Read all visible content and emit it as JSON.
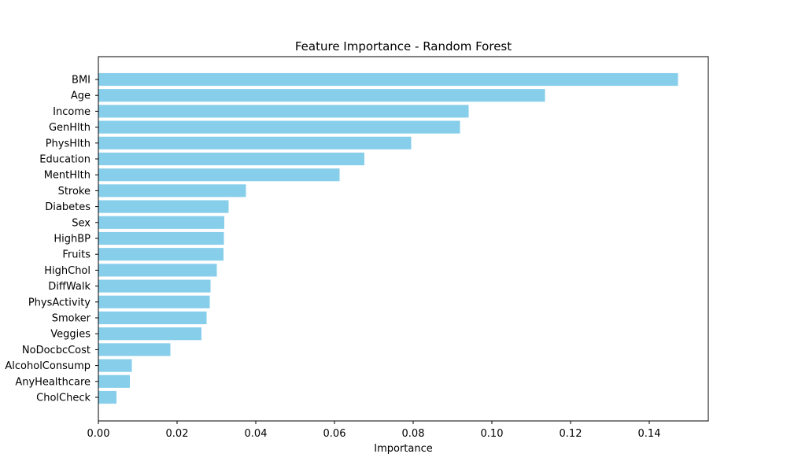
{
  "chart_data": {
    "type": "bar",
    "orientation": "horizontal",
    "title": "Feature Importance - Random Forest",
    "xlabel": "Importance",
    "ylabel": "",
    "xlim": [
      0.0,
      0.155
    ],
    "xticks": [
      0.0,
      0.02,
      0.04,
      0.06,
      0.08,
      0.1,
      0.12,
      0.14
    ],
    "xtick_labels": [
      "0.00",
      "0.02",
      "0.04",
      "0.06",
      "0.08",
      "0.10",
      "0.12",
      "0.14"
    ],
    "grid": false,
    "bar_color": "#87ceeb",
    "categories": [
      "BMI",
      "Age",
      "Income",
      "GenHlth",
      "PhysHlth",
      "Education",
      "MentHlth",
      "Stroke",
      "Diabetes",
      "Sex",
      "HighBP",
      "Fruits",
      "HighChol",
      "DiffWalk",
      "PhysActivity",
      "Smoker",
      "Veggies",
      "NoDocbcCost",
      "AlcoholConsump",
      "AnyHealthcare",
      "CholCheck"
    ],
    "values": [
      0.1473,
      0.1135,
      0.0941,
      0.0919,
      0.0795,
      0.0676,
      0.0613,
      0.0375,
      0.0331,
      0.032,
      0.0319,
      0.0318,
      0.0301,
      0.0285,
      0.0283,
      0.0275,
      0.0262,
      0.0183,
      0.0085,
      0.008,
      0.0046
    ]
  }
}
